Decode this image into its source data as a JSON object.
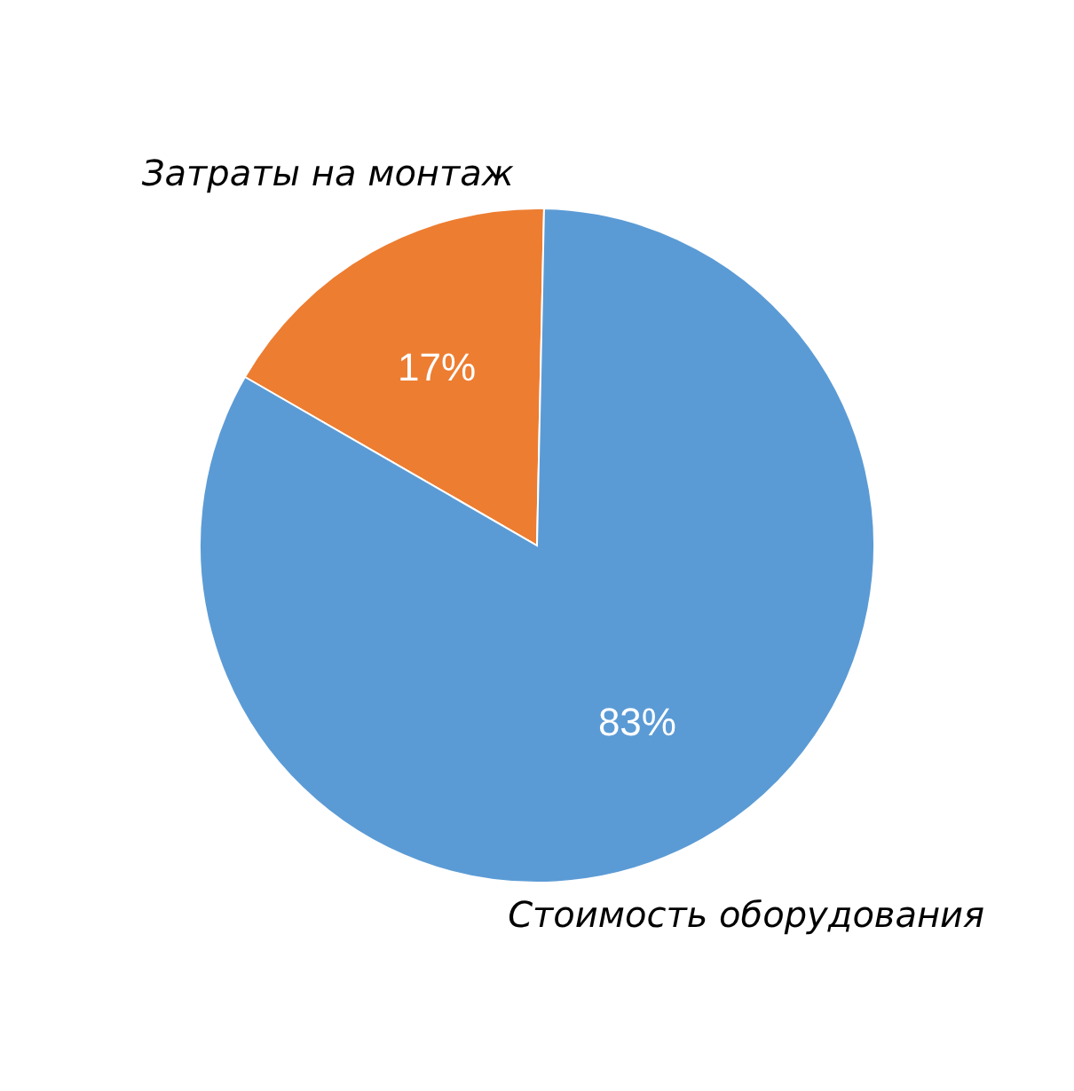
{
  "chart_data": {
    "type": "pie",
    "categories": [
      "Затраты на монтаж",
      "Стоимость оборудования"
    ],
    "values": [
      17,
      83
    ],
    "colors": [
      "#ed7d31",
      "#5b9bd5"
    ],
    "value_labels": [
      "17%",
      "83%"
    ]
  }
}
